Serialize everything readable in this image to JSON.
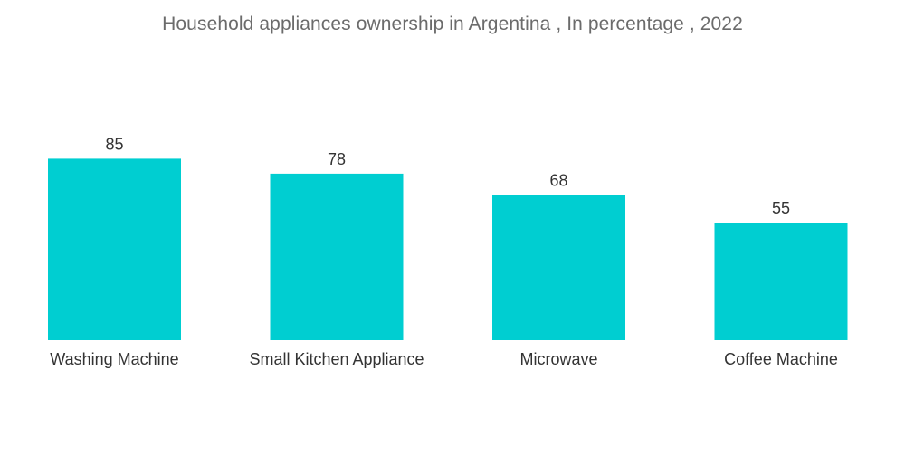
{
  "chart_data": {
    "type": "bar",
    "title": "Household appliances ownership in Argentina , In percentage , 2022",
    "categories": [
      "Washing Machine",
      "Small Kitchen Appliance",
      "Microwave",
      "Coffee Machine"
    ],
    "values": [
      85,
      78,
      68,
      55
    ],
    "xlabel": "",
    "ylabel": "",
    "ylim": [
      0,
      100
    ],
    "grid": false,
    "bar_color": "#00CED1"
  }
}
